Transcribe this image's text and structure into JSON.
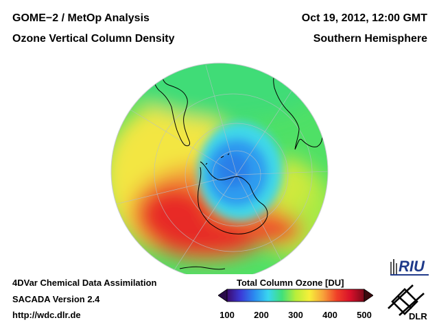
{
  "header": {
    "left_line1": "GOME−2 / MetOp Analysis",
    "left_line2": "Ozone Vertical Column Density",
    "right_line1": "Oct 19, 2012, 12:00 GMT",
    "right_line2": "Southern Hemisphere"
  },
  "footer": {
    "line1": "4DVar Chemical Data Assimilation",
    "line2": "SACADA Version 2.4",
    "line3": "http://wdc.dlr.de"
  },
  "legend": {
    "title": "Total Column Ozone [DU]",
    "min": 100,
    "max": 500,
    "ticks": [
      "100",
      "200",
      "300",
      "400",
      "500"
    ],
    "colors": [
      "#3b0a6e",
      "#3b3bd8",
      "#2b8cf0",
      "#39d6f0",
      "#40e07a",
      "#b8ee3a",
      "#f7ef3a",
      "#f7a23a",
      "#f04028",
      "#d8102a",
      "#7a0a1a"
    ]
  },
  "logos": {
    "riu": "RIU",
    "dlr": "DLR"
  },
  "map": {
    "projection": "orthographic, south polar view",
    "ozone_hole_min_du": 190,
    "collar_max_du": 430
  }
}
